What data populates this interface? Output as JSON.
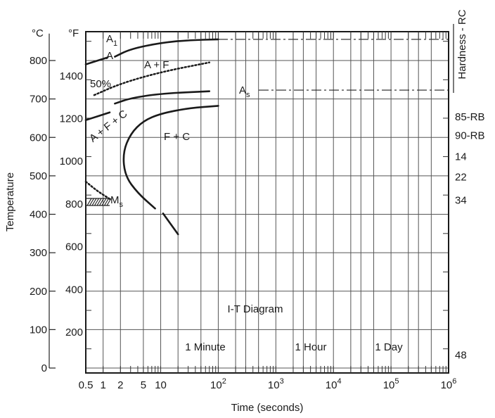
{
  "chart_data": {
    "type": "line",
    "title": "",
    "subtitle": "",
    "annotation_title": "I-T Diagram",
    "x_axis": {
      "label": "Time (seconds)",
      "scale": "log",
      "range": [
        0.5,
        1000000
      ],
      "ticks": [
        {
          "value": 0.5,
          "text": "0.5"
        },
        {
          "value": 1,
          "text": "1"
        },
        {
          "value": 2,
          "text": "2"
        },
        {
          "value": 5,
          "text": "5"
        },
        {
          "value": 10,
          "text": "10"
        },
        {
          "value": 100,
          "text": "10",
          "sup": "2"
        },
        {
          "value": 1000,
          "text": "10",
          "sup": "3"
        },
        {
          "value": 10000,
          "text": "10",
          "sup": "4"
        },
        {
          "value": 100000,
          "text": "10",
          "sup": "5"
        },
        {
          "value": 1000000,
          "text": "10",
          "sup": "6"
        }
      ]
    },
    "y_axis_celsius": {
      "unit_label": "°C",
      "range": [
        0,
        880
      ],
      "ticks": [
        {
          "value": 0,
          "text": "0"
        },
        {
          "value": 100,
          "text": "100"
        },
        {
          "value": 200,
          "text": "200"
        },
        {
          "value": 300,
          "text": "300"
        },
        {
          "value": 400,
          "text": "400"
        },
        {
          "value": 500,
          "text": "500"
        },
        {
          "value": 600,
          "text": "600"
        },
        {
          "value": 700,
          "text": "700"
        },
        {
          "value": 800,
          "text": "800"
        }
      ]
    },
    "y_axis_fahrenheit": {
      "unit_label": "°F",
      "ticks": [
        {
          "value": 200,
          "text": "200"
        },
        {
          "value": 400,
          "text": "400"
        },
        {
          "value": 600,
          "text": "600"
        },
        {
          "value": 800,
          "text": "800"
        },
        {
          "value": 1000,
          "text": "1000"
        },
        {
          "value": 1200,
          "text": "1200"
        },
        {
          "value": 1400,
          "text": "1400"
        }
      ]
    },
    "y_axis_left_title": "Temperature",
    "hardness_axis": {
      "title": "Hardness - RC",
      "labels": [
        {
          "temp_c": 654,
          "text": "85-RB"
        },
        {
          "temp_c": 605,
          "text": "90-RB"
        },
        {
          "temp_c": 550,
          "text": "14"
        },
        {
          "temp_c": 497,
          "text": "22"
        },
        {
          "temp_c": 437,
          "text": "34"
        },
        {
          "temp_c": 34,
          "text": "48"
        }
      ]
    },
    "time_markers": [
      {
        "seconds": 60,
        "text": "1 Minute"
      },
      {
        "seconds": 3600,
        "text": "1 Hour"
      },
      {
        "seconds": 86400,
        "text": "1 Day"
      }
    ],
    "reference_lines": [
      {
        "name": "A1",
        "text": "A",
        "sub": "1",
        "temp_c": 855
      },
      {
        "name": "As",
        "text": "A",
        "sub": "s",
        "temp_c": 723
      },
      {
        "name": "Ms",
        "text": "M",
        "sub": "s",
        "temp_c": 422
      }
    ],
    "regions": [
      {
        "text": "A"
      },
      {
        "text": "A + F"
      },
      {
        "text": "50%"
      },
      {
        "text": "A + F + C"
      },
      {
        "text": "F + C"
      }
    ],
    "series": [
      {
        "style": "solid",
        "points": [
          [
            1.6,
            810
          ],
          [
            3,
            830
          ],
          [
            10,
            846
          ],
          [
            30,
            853
          ],
          [
            100,
            855
          ]
        ]
      },
      {
        "style": "solid",
        "points": [
          [
            0.5,
            790
          ],
          [
            1.2,
            808
          ]
        ]
      },
      {
        "style": "dotted",
        "points": [
          [
            0.7,
            710
          ],
          [
            2,
            740
          ],
          [
            10,
            770
          ],
          [
            70,
            795
          ]
        ]
      },
      {
        "style": "solid",
        "points": [
          [
            1.6,
            688
          ],
          [
            3,
            702
          ],
          [
            10,
            714
          ],
          [
            70,
            720
          ]
        ]
      },
      {
        "style": "solid",
        "points": [
          [
            0.5,
            645
          ],
          [
            1.3,
            665
          ]
        ]
      },
      {
        "style": "solid",
        "points": [
          [
            100,
            682
          ],
          [
            30,
            676
          ],
          [
            10,
            662
          ],
          [
            5,
            643
          ],
          [
            3,
            610
          ],
          [
            2.2,
            560
          ],
          [
            2.4,
            500
          ],
          [
            4,
            455
          ],
          [
            8,
            415
          ]
        ]
      },
      {
        "style": "solid",
        "points": [
          [
            11,
            402
          ],
          [
            20,
            348
          ]
        ]
      },
      {
        "style": "dotted",
        "points": [
          [
            0.5,
            485
          ],
          [
            0.8,
            460
          ],
          [
            1.3,
            440
          ]
        ]
      }
    ]
  }
}
